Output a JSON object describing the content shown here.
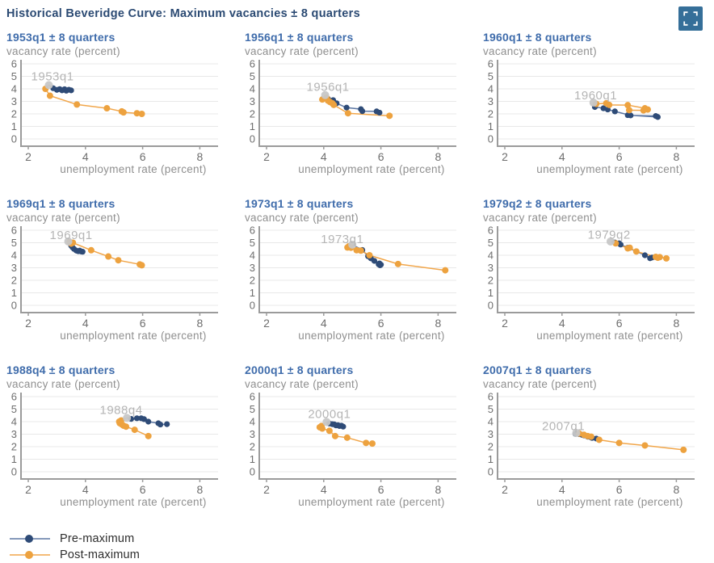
{
  "page_title": "Historical Beveridge Curve: Maximum vacancies ± 8 quarters",
  "colors": {
    "pre": "#2e4b77",
    "pre_line": "#5b76a3",
    "post": "#eda23f",
    "post_line": "#f1a64a",
    "max_marker": "#c7c7c7",
    "panel_title": "#3f6cab",
    "main_title": "#2b4a73",
    "icon_bg": "#356f99",
    "axis_line": "#9b9b9b",
    "gridline": "#e8e8e8",
    "tick_text": "#6e6e6e",
    "peak_label_text": "#b5b5b5"
  },
  "legend": [
    {
      "label": "Pre-maximum",
      "color": "#2e4b77",
      "line": "#5b76a3"
    },
    {
      "label": "Post-maximum",
      "color": "#eda23f",
      "line": "#f1a64a"
    }
  ],
  "chart_data": {
    "type": "scatter-line",
    "xlabel": "unemployment rate (percent)",
    "ylabel": "vacancy rate (percent)",
    "x_ticks": [
      2,
      4,
      6,
      8
    ],
    "y_ticks": [
      0,
      1,
      2,
      3,
      4,
      5,
      6
    ],
    "xlim": [
      1.7,
      8.6
    ],
    "ylim": [
      0,
      6.5
    ],
    "grid": "horizontal",
    "legend_position": "bottom-left",
    "panels": [
      {
        "title": "1953q1 ± 8 quarters",
        "peak_label": "1953q1",
        "label_pos": [
          2.1,
          5.0
        ],
        "max": [
          2.72,
          4.3
        ],
        "series": [
          {
            "name": "Pre-maximum",
            "points": [
              [
                3.5,
                3.88
              ],
              [
                3.42,
                3.93
              ],
              [
                3.33,
                3.85
              ],
              [
                3.27,
                3.97
              ],
              [
                3.18,
                3.88
              ],
              [
                3.1,
                3.98
              ],
              [
                3.0,
                3.92
              ],
              [
                2.87,
                4.05
              ]
            ]
          },
          {
            "name": "Post-maximum",
            "points": [
              [
                2.6,
                4.0
              ],
              [
                2.76,
                3.45
              ],
              [
                3.7,
                2.75
              ],
              [
                4.75,
                2.45
              ],
              [
                5.27,
                2.2
              ],
              [
                5.33,
                2.12
              ],
              [
                5.8,
                2.05
              ],
              [
                5.97,
                2.0
              ]
            ]
          }
        ]
      },
      {
        "title": "1956q1 ± 8 quarters",
        "peak_label": "1956q1",
        "label_pos": [
          3.4,
          4.15
        ],
        "max": [
          4.05,
          3.5
        ],
        "series": [
          {
            "name": "Pre-maximum",
            "points": [
              [
                5.95,
                2.1
              ],
              [
                5.85,
                2.2
              ],
              [
                5.35,
                2.22
              ],
              [
                5.3,
                2.38
              ],
              [
                4.8,
                2.5
              ],
              [
                4.45,
                2.85
              ],
              [
                4.33,
                3.1
              ],
              [
                4.15,
                3.2
              ]
            ]
          },
          {
            "name": "Post-maximum",
            "points": [
              [
                3.95,
                3.15
              ],
              [
                4.1,
                3.3
              ],
              [
                4.15,
                3.05
              ],
              [
                4.22,
                2.95
              ],
              [
                4.3,
                2.85
              ],
              [
                4.35,
                2.72
              ],
              [
                4.85,
                2.05
              ],
              [
                6.3,
                1.85
              ]
            ]
          }
        ]
      },
      {
        "title": "1960q1 ± 8 quarters",
        "peak_label": "1960q1",
        "label_pos": [
          4.43,
          3.5
        ],
        "max": [
          5.1,
          2.9
        ],
        "series": [
          {
            "name": "Pre-maximum",
            "points": [
              [
                6.3,
                1.9
              ],
              [
                7.35,
                1.75
              ],
              [
                7.28,
                1.83
              ],
              [
                6.4,
                1.88
              ],
              [
                5.85,
                2.2
              ],
              [
                5.6,
                2.35
              ],
              [
                5.45,
                2.45
              ],
              [
                5.15,
                2.55
              ]
            ]
          },
          {
            "name": "Post-maximum",
            "points": [
              [
                5.2,
                2.8
              ],
              [
                5.55,
                2.85
              ],
              [
                5.65,
                2.72
              ],
              [
                6.3,
                2.7
              ],
              [
                6.9,
                2.45
              ],
              [
                7.0,
                2.35
              ],
              [
                6.85,
                2.28
              ],
              [
                6.35,
                2.3
              ]
            ]
          }
        ]
      },
      {
        "title": "1969q1 ± 8 quarters",
        "peak_label": "1969q1",
        "label_pos": [
          2.75,
          5.6
        ],
        "max": [
          3.4,
          5.1
        ],
        "series": [
          {
            "name": "Pre-maximum",
            "points": [
              [
                3.85,
                4.3
              ],
              [
                3.8,
                4.37
              ],
              [
                3.9,
                4.28
              ],
              [
                3.75,
                4.32
              ],
              [
                3.68,
                4.37
              ],
              [
                3.6,
                4.5
              ],
              [
                3.55,
                4.62
              ],
              [
                3.5,
                4.77
              ]
            ]
          },
          {
            "name": "Post-maximum",
            "points": [
              [
                3.45,
                5.05
              ],
              [
                3.5,
                4.93
              ],
              [
                3.56,
                5.0
              ],
              [
                4.2,
                4.4
              ],
              [
                4.8,
                3.9
              ],
              [
                5.15,
                3.6
              ],
              [
                5.9,
                3.27
              ],
              [
                5.97,
                3.2
              ]
            ]
          }
        ]
      },
      {
        "title": "1973q1 ± 8 quarters",
        "peak_label": "1973q1",
        "label_pos": [
          3.9,
          5.3
        ],
        "max": [
          5.0,
          4.85
        ],
        "series": [
          {
            "name": "Pre-maximum",
            "points": [
              [
                5.97,
                3.2
              ],
              [
                5.92,
                3.28
              ],
              [
                6.0,
                3.25
              ],
              [
                5.95,
                3.35
              ],
              [
                5.77,
                3.55
              ],
              [
                5.65,
                3.75
              ],
              [
                5.55,
                3.92
              ],
              [
                5.35,
                4.42
              ]
            ]
          },
          {
            "name": "Post-maximum",
            "points": [
              [
                4.88,
                4.72
              ],
              [
                4.83,
                4.62
              ],
              [
                4.95,
                4.6
              ],
              [
                5.15,
                4.4
              ],
              [
                5.3,
                4.37
              ],
              [
                5.6,
                4.0
              ],
              [
                6.6,
                3.3
              ],
              [
                8.25,
                2.8
              ]
            ]
          }
        ]
      },
      {
        "title": "1979q2 ± 8 quarters",
        "peak_label": "1979q2",
        "label_pos": [
          4.9,
          5.65
        ],
        "max": [
          5.7,
          5.1
        ],
        "series": [
          {
            "name": "Pre-maximum",
            "points": [
              [
                7.15,
                3.82
              ],
              [
                7.08,
                3.76
              ],
              [
                6.9,
                4.0
              ],
              [
                6.6,
                4.3
              ],
              [
                6.3,
                4.6
              ],
              [
                6.05,
                4.85
              ],
              [
                6.0,
                4.95
              ],
              [
                5.85,
                5.02
              ]
            ]
          },
          {
            "name": "Post-maximum",
            "points": [
              [
                5.88,
                4.95
              ],
              [
                6.3,
                4.55
              ],
              [
                6.37,
                4.6
              ],
              [
                6.6,
                4.3
              ],
              [
                7.28,
                3.87
              ],
              [
                7.35,
                3.8
              ],
              [
                7.42,
                3.85
              ],
              [
                7.65,
                3.75
              ]
            ]
          }
        ]
      },
      {
        "title": "1988q4 ± 8 quarters",
        "peak_label": "1988q4",
        "label_pos": [
          4.5,
          4.95
        ],
        "max": [
          5.45,
          4.3
        ],
        "series": [
          {
            "name": "Pre-maximum",
            "points": [
              [
                6.85,
                3.8
              ],
              [
                6.62,
                3.77
              ],
              [
                6.55,
                3.87
              ],
              [
                6.2,
                4.0
              ],
              [
                6.05,
                4.2
              ],
              [
                5.95,
                4.27
              ],
              [
                5.8,
                4.27
              ],
              [
                5.6,
                4.22
              ]
            ]
          },
          {
            "name": "Post-maximum",
            "points": [
              [
                5.25,
                4.1
              ],
              [
                5.18,
                4.0
              ],
              [
                5.2,
                3.88
              ],
              [
                5.27,
                3.78
              ],
              [
                5.33,
                3.68
              ],
              [
                5.42,
                3.6
              ],
              [
                5.72,
                3.35
              ],
              [
                6.2,
                2.85
              ]
            ]
          }
        ]
      },
      {
        "title": "2000q1 ± 8 quarters",
        "peak_label": "2000q1",
        "label_pos": [
          3.45,
          4.6
        ],
        "max": [
          4.1,
          3.97
        ],
        "series": [
          {
            "name": "Pre-maximum",
            "points": [
              [
                4.68,
                3.6
              ],
              [
                4.62,
                3.68
              ],
              [
                4.55,
                3.65
              ],
              [
                4.5,
                3.72
              ],
              [
                4.43,
                3.7
              ],
              [
                4.37,
                3.78
              ],
              [
                4.3,
                3.8
              ],
              [
                4.2,
                3.85
              ]
            ]
          },
          {
            "name": "Post-maximum",
            "points": [
              [
                3.92,
                3.65
              ],
              [
                3.86,
                3.55
              ],
              [
                3.95,
                3.45
              ],
              [
                4.2,
                3.27
              ],
              [
                4.4,
                2.85
              ],
              [
                4.82,
                2.72
              ],
              [
                5.48,
                2.3
              ],
              [
                5.7,
                2.25
              ]
            ]
          }
        ]
      },
      {
        "title": "2007q1 ± 8 quarters",
        "peak_label": "2007q1",
        "label_pos": [
          3.3,
          3.65
        ],
        "max": [
          4.5,
          3.1
        ],
        "series": [
          {
            "name": "Pre-maximum",
            "points": [
              [
                5.2,
                2.65
              ],
              [
                5.05,
                2.7
              ],
              [
                5.0,
                2.76
              ],
              [
                4.9,
                2.8
              ],
              [
                4.77,
                2.9
              ],
              [
                4.7,
                2.95
              ],
              [
                4.6,
                3.0
              ],
              [
                4.47,
                3.02
              ]
            ]
          },
          {
            "name": "Post-maximum",
            "points": [
              [
                4.6,
                3.05
              ],
              [
                4.77,
                2.95
              ],
              [
                4.9,
                2.85
              ],
              [
                5.02,
                2.8
              ],
              [
                5.3,
                2.55
              ],
              [
                6.0,
                2.3
              ],
              [
                6.9,
                2.1
              ],
              [
                8.25,
                1.75
              ]
            ]
          }
        ]
      }
    ]
  }
}
